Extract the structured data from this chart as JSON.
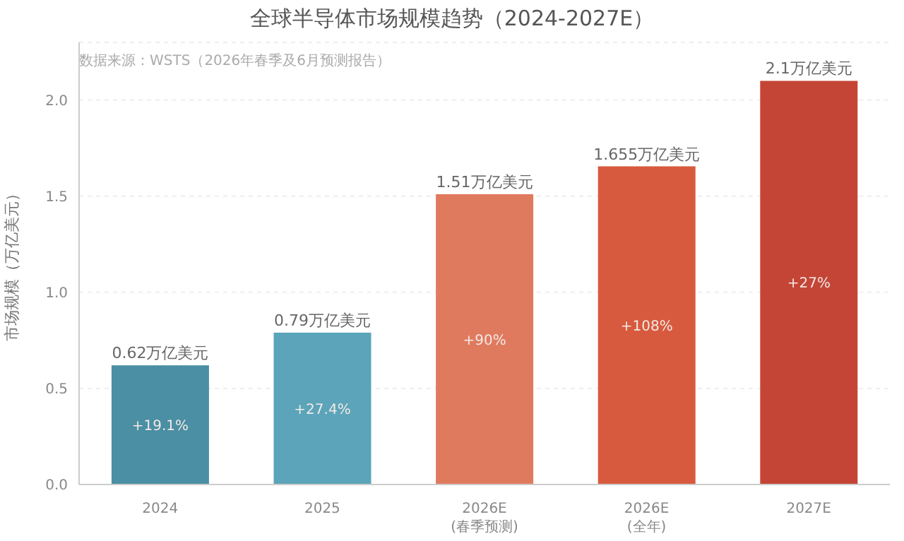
{
  "chart_data": {
    "type": "bar",
    "title": "全球半导体市场规模趋势（2024-2027E）",
    "ylabel": "市场规模（万亿美元）",
    "categories": [
      "2024",
      "2025",
      "2026E\n(春季预测)",
      "2026E\n(全年)",
      "2027E"
    ],
    "values": [
      0.62,
      0.79,
      1.51,
      1.655,
      2.1
    ],
    "colors": [
      "#4a8fa3",
      "#5ba4b9",
      "#e07a5f",
      "#d85a3e",
      "#c44536"
    ],
    "value_labels": [
      "0.62万亿美元",
      "0.79万亿美元",
      "1.51万亿美元",
      "1.655万亿美元",
      "2.1万亿美元"
    ],
    "annotations": [
      "数据来源：WSTS（2026年春季及6月预测报告）",
      "+19.1%",
      "+27.4%",
      "+90%",
      "+108%",
      "+27%"
    ],
    "ylim": [
      0,
      2.3
    ],
    "yticks": [
      {
        "value": 0,
        "label": "0.0"
      },
      0.5,
      {
        "value": 1,
        "label": "1.0"
      },
      1.5,
      {
        "value": 2,
        "label": "2.0"
      }
    ],
    "grid": "y"
  }
}
